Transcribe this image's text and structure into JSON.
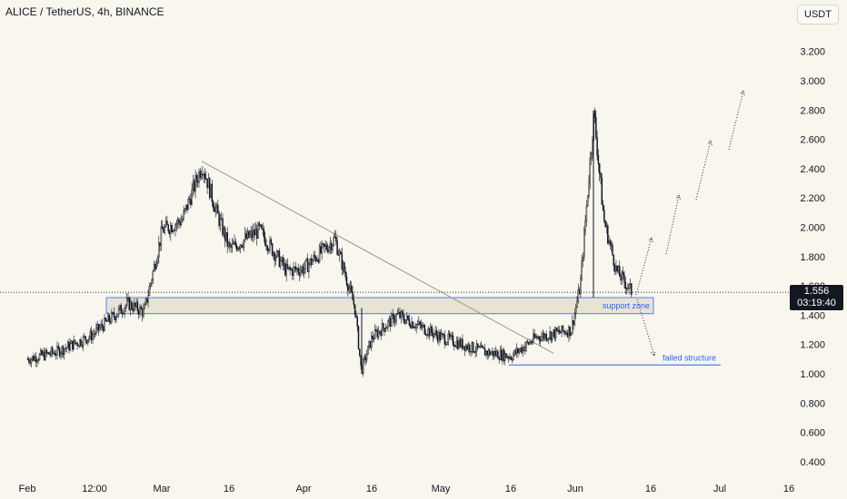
{
  "header": {
    "title": "ALICE / TetherUS, 4h, BINANCE"
  },
  "toolbar": {
    "unit_label": "USDT"
  },
  "price_badge": {
    "price": "1.556",
    "countdown": "03:19:40"
  },
  "annotations": {
    "support_zone": "support zone",
    "failed_structure": "failed structure"
  },
  "colors": {
    "background": "#f8f6ed",
    "candles": "#131722",
    "annotation_blue": "#2962ff",
    "trendline": "#9c9a8a",
    "zone_fill": "#e8e4d4"
  },
  "chart_data": {
    "type": "candlestick",
    "symbol": "ALICE / TetherUS",
    "interval": "4h",
    "exchange": "BINANCE",
    "y_axis": {
      "ticks": [
        "0.400",
        "0.600",
        "0.800",
        "1.000",
        "1.200",
        "1.400",
        "1.600",
        "1.800",
        "2.000",
        "2.200",
        "2.400",
        "2.600",
        "2.800",
        "3.000",
        "3.200"
      ],
      "range": [
        0.35,
        3.45
      ]
    },
    "x_axis": {
      "ticks": [
        "Feb",
        "12:00",
        "Mar",
        "16",
        "Apr",
        "16",
        "May",
        "16",
        "Jun",
        "16",
        "Jul",
        "16"
      ]
    },
    "price_path": [
      [
        "Feb",
        1.1
      ],
      [
        "Feb 8",
        1.15
      ],
      [
        "Feb 15",
        1.26
      ],
      [
        "Feb 22",
        1.48
      ],
      [
        "Feb 26",
        1.42
      ],
      [
        "Mar",
        1.98
      ],
      [
        "Mar 5",
        2.05
      ],
      [
        "Mar 8",
        2.43
      ],
      [
        "Mar 12",
        2.1
      ],
      [
        "Mar 16",
        1.85
      ],
      [
        "Mar 22",
        1.98
      ],
      [
        "Mar 28",
        1.7
      ],
      [
        "Apr",
        1.72
      ],
      [
        "Apr 8",
        1.92
      ],
      [
        "Apr 12",
        1.45
      ],
      [
        "Apr 13",
        1.02
      ],
      [
        "Apr 16",
        1.25
      ],
      [
        "Apr 22",
        1.4
      ],
      [
        "May",
        1.25
      ],
      [
        "May 10",
        1.15
      ],
      [
        "May 16",
        1.12
      ],
      [
        "May 22",
        1.25
      ],
      [
        "May 30",
        1.3
      ],
      [
        "Jun",
        1.6
      ],
      [
        "Jun 2",
        2.78
      ],
      [
        "Jun 5",
        2.05
      ],
      [
        "Jun 8",
        1.7
      ],
      [
        "Jun 12",
        1.556
      ]
    ],
    "current_price": 1.556,
    "support_zone": {
      "low": 1.41,
      "high": 1.52,
      "label": "support zone"
    },
    "failed_structure_level": 1.06,
    "descending_trendline": {
      "from": [
        "Mar 8",
        2.45
      ],
      "to": [
        "May 28",
        1.14
      ]
    },
    "projection": "dotted zigzag rising toward 2.95"
  }
}
